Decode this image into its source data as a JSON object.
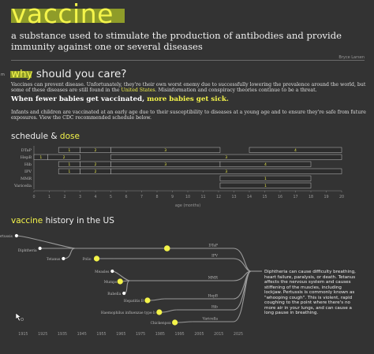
{
  "header": {
    "title": "vaccine",
    "definition": "a substance used to stimulate the production of antibodies and provide immunity against one or several diseases",
    "author": "Bryce Larsen"
  },
  "side_tag": "m",
  "why": {
    "highlight": "why",
    "rest": " should you care?",
    "para1_a": "Vaccines can prevent disease. Unfortunately, they're their own worst enemy due to successfully lowering the prevalence around the world, but some of these diseases are still found in the ",
    "para1_link": "United States",
    "para1_b": ". Misinformation and conspiracy theories continue to be a threat.",
    "bold_a": "When fewer babies get vaccinated, ",
    "bold_hl": "more babies get sick.",
    "para2": "Infants and children are vaccinated at an early age due to their susceptibility to diseases at a young age and to ensure they're safe from future exposures. View the CDC recommended schedule below."
  },
  "schedule": {
    "heading_a": "schedule & ",
    "heading_hl": "dose"
  },
  "history": {
    "heading_hl": "vaccine",
    "heading_rest": " history in the US"
  },
  "tooltip": "Diphtheria can cause difficulty breathing, heart failure, paralysis, or death. Tetanus affects the nervous system and causes stiffening of the muscles, including lockjaw. Pertussis is commonly known as \"whooping cough\". This is violent, rapid coughing to the point where there's no more air in your lungs, and can cause a long pause in breathing.",
  "colors": {
    "accent": "#f4f44a",
    "highlight_bg": "#8f9c29",
    "background": "#333333"
  },
  "icons": {
    "cursor": "cursor-icon"
  },
  "chart_data": [
    {
      "type": "gantt",
      "xlabel": "age (months)",
      "xlim": [
        0,
        20
      ],
      "xticks": [
        0,
        1,
        2,
        3,
        4,
        5,
        6,
        7,
        8,
        9,
        10,
        11,
        12,
        13,
        14,
        15,
        16,
        17,
        18,
        19,
        20
      ],
      "rows": [
        {
          "name": "DTaP",
          "doses": [
            {
              "n": "1",
              "start": 1.6,
              "end": 3
            },
            {
              "n": "2",
              "start": 3,
              "end": 5
            },
            {
              "n": "3",
              "start": 5,
              "end": 12.1
            },
            {
              "n": "4",
              "start": 14,
              "end": 20
            }
          ]
        },
        {
          "name": "HepB",
          "doses": [
            {
              "n": "1",
              "start": 0,
              "end": 0.9
            },
            {
              "n": "2",
              "start": 0.9,
              "end": 3
            },
            {
              "n": "3",
              "start": 5,
              "end": 20
            }
          ]
        },
        {
          "name": "Hib",
          "doses": [
            {
              "n": "1",
              "start": 1.6,
              "end": 3
            },
            {
              "n": "2",
              "start": 3,
              "end": 5
            },
            {
              "n": "3",
              "start": 5,
              "end": 12.1
            },
            {
              "n": "4",
              "start": 12.1,
              "end": 18
            }
          ]
        },
        {
          "name": "IPV",
          "doses": [
            {
              "n": "1",
              "start": 1.6,
              "end": 3
            },
            {
              "n": "2",
              "start": 3,
              "end": 5
            },
            {
              "n": "3",
              "start": 5,
              "end": 20
            }
          ]
        },
        {
          "name": "MMR",
          "doses": [
            {
              "n": "1",
              "start": 12.1,
              "end": 18
            }
          ]
        },
        {
          "name": "Varicella",
          "doses": [
            {
              "n": "1",
              "start": 12.1,
              "end": 18
            }
          ]
        }
      ]
    },
    {
      "type": "timeline",
      "xlim": [
        1910,
        2025
      ],
      "xticks": [
        1915,
        1925,
        1935,
        1945,
        1955,
        1965,
        1975,
        1985,
        1995,
        2005,
        2015,
        2025
      ],
      "diseases": [
        {
          "name": "Pertussis",
          "year": 1914,
          "highlight": false
        },
        {
          "name": "Diphtheria",
          "year": 1926,
          "highlight": false
        },
        {
          "name": "Tetanus",
          "year": 1938,
          "highlight": false
        },
        {
          "name": "Polio",
          "year": 1955,
          "highlight": true
        },
        {
          "name": "Measles",
          "year": 1963,
          "highlight": false
        },
        {
          "name": "Mumps",
          "year": 1967,
          "highlight": true
        },
        {
          "name": "Rubella",
          "year": 1969,
          "highlight": false
        },
        {
          "name": "Hepatitis B",
          "year": 1981,
          "highlight": true
        },
        {
          "name": "Haemophilus influenzae type b",
          "year": 1987,
          "highlight": true
        },
        {
          "name": "Chickenpox",
          "year": 1995,
          "highlight": true
        }
      ],
      "vaccines": [
        {
          "name": "DTaP",
          "year": 1991,
          "from": [
            "Pertussis",
            "Diphtheria",
            "Tetanus"
          ]
        },
        {
          "name": "IPV",
          "from": [
            "Polio"
          ]
        },
        {
          "name": "MMR",
          "from": [
            "Measles",
            "Mumps",
            "Rubella"
          ]
        },
        {
          "name": "HepB",
          "from": [
            "Hepatitis B"
          ]
        },
        {
          "name": "Hib",
          "from": [
            "Haemophilus influenzae type b"
          ]
        },
        {
          "name": "Varicella",
          "from": [
            "Chickenpox"
          ]
        }
      ]
    }
  ]
}
